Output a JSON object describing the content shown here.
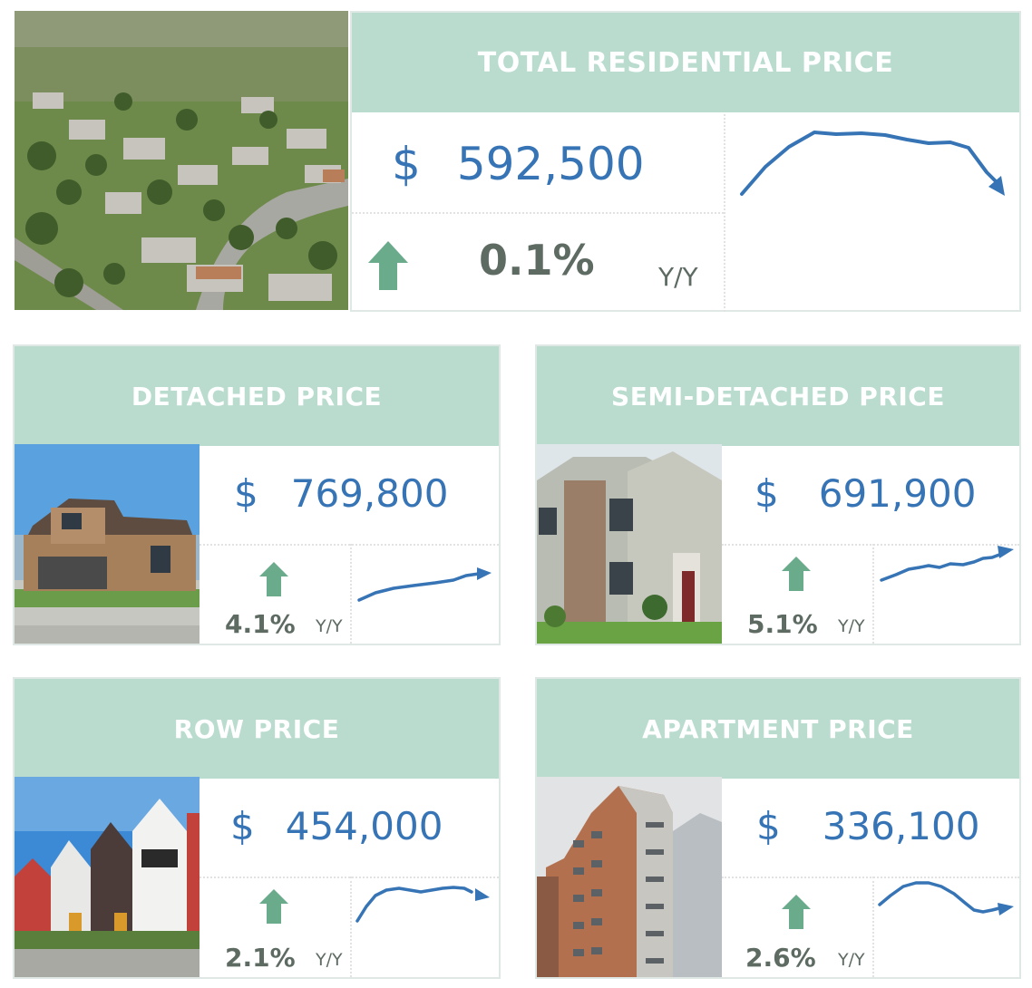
{
  "colors": {
    "header_bg": "#b9dccf",
    "price_blue": "#3674b5",
    "arrow_green": "#6aab8c",
    "text_gray": "#5d6b63"
  },
  "total": {
    "title": "TOTAL RESIDENTIAL PRICE",
    "currency": "$",
    "price": "592,500",
    "change": "0.1%",
    "period": "Y/Y",
    "trend_icon": "up-arrow-icon"
  },
  "cards": [
    {
      "title": "DETACHED PRICE",
      "currency": "$",
      "price": "769,800",
      "change": "4.1%",
      "period": "Y/Y"
    },
    {
      "title": "SEMI-DETACHED PRICE",
      "currency": "$",
      "price": "691,900",
      "change": "5.1%",
      "period": "Y/Y"
    },
    {
      "title": "ROW PRICE",
      "currency": "$",
      "price": "454,000",
      "change": "2.1%",
      "period": "Y/Y"
    },
    {
      "title": "APARTMENT PRICE",
      "currency": "$",
      "price": "336,100",
      "change": "2.6%",
      "period": "Y/Y"
    }
  ]
}
